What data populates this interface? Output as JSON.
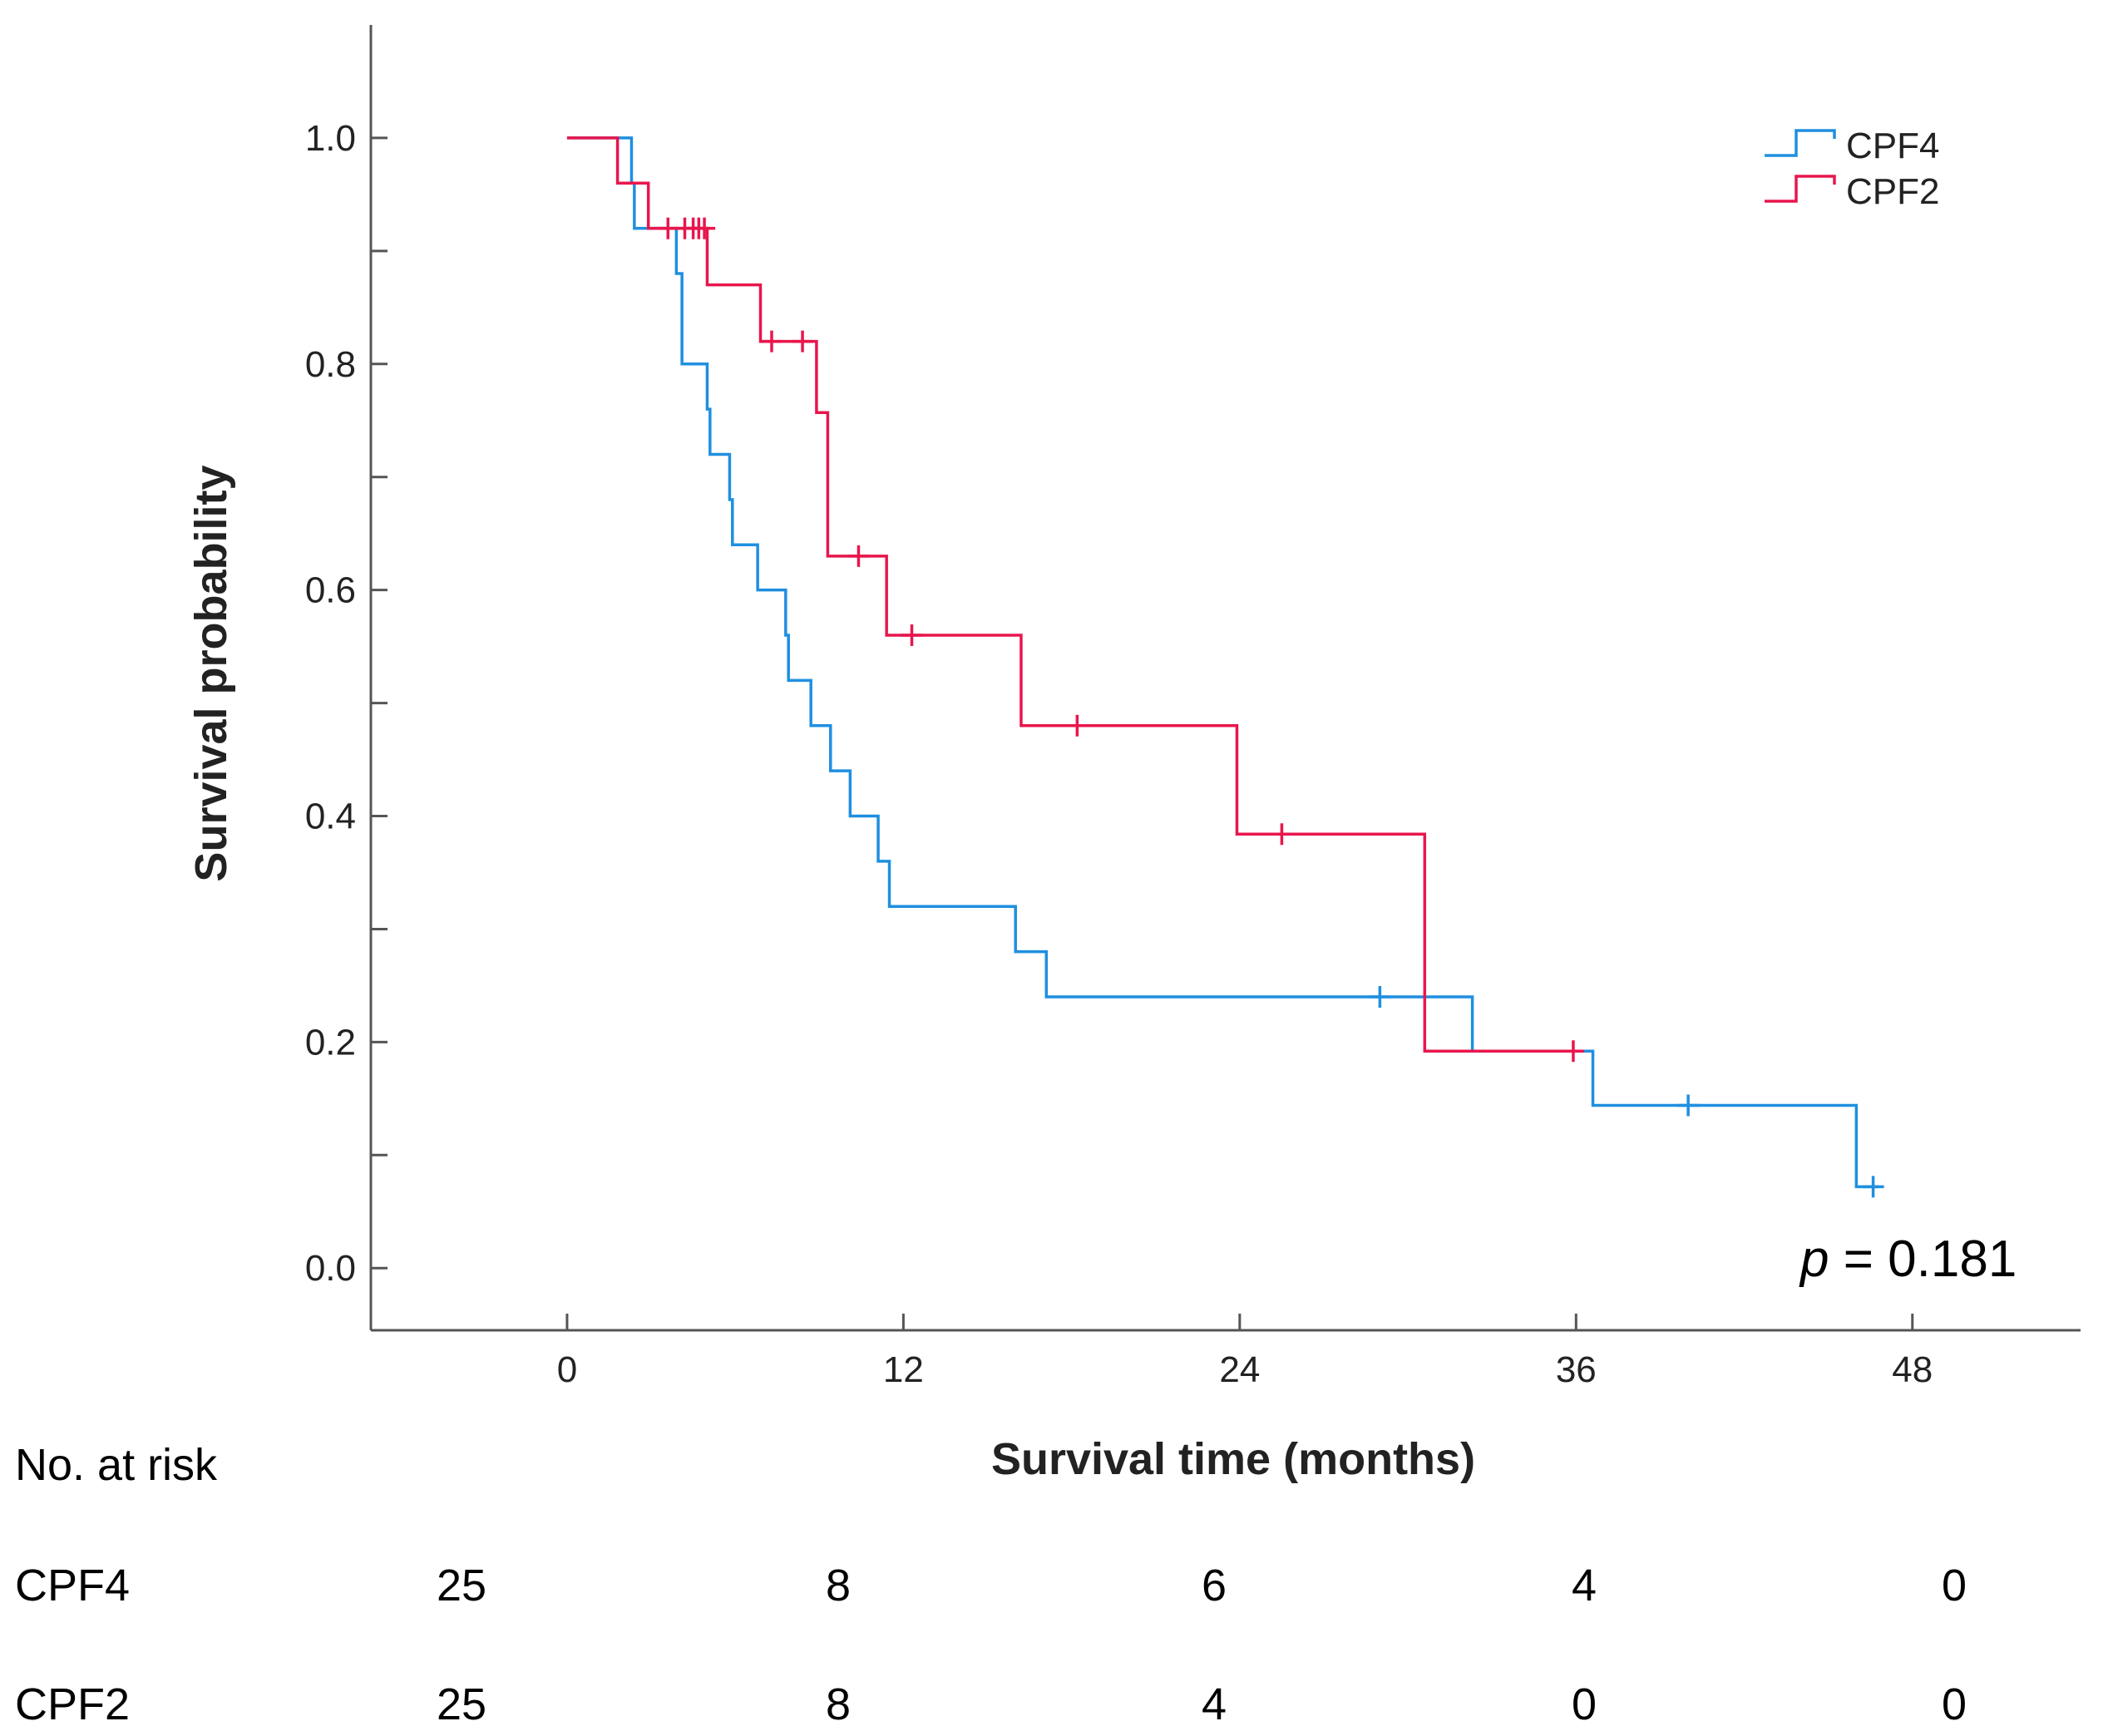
{
  "chart_data": {
    "type": "line",
    "subtype": "kaplan-meier",
    "title": "",
    "xlabel": "Survival time (months)",
    "ylabel": "Survival probability",
    "xlim": [
      -7,
      54
    ],
    "ylim": [
      -0.055,
      1.1
    ],
    "xticks": [
      0,
      12,
      24,
      36,
      48
    ],
    "xtick_labels": [
      "0",
      "12",
      "24",
      "36",
      "48"
    ],
    "yticks": [
      0.0,
      0.2,
      0.4,
      0.6,
      0.8,
      1.0
    ],
    "ytick_labels": [
      "0.0",
      "0.2",
      "0.4",
      "0.6",
      "0.8",
      "1.0"
    ],
    "yminor_ticks": [
      0.1,
      0.3,
      0.5,
      0.7,
      0.9
    ],
    "grid": false,
    "legend_position": "top-right",
    "series": [
      {
        "name": "CPF4",
        "color": "#1f8fe0",
        "steps": [
          [
            0,
            1.0
          ],
          [
            2.3,
            0.96
          ],
          [
            2.4,
            0.92
          ],
          [
            3.9,
            0.88
          ],
          [
            4.1,
            0.8
          ],
          [
            5.0,
            0.76
          ],
          [
            5.1,
            0.72
          ],
          [
            5.8,
            0.68
          ],
          [
            5.9,
            0.64
          ],
          [
            6.8,
            0.6
          ],
          [
            7.8,
            0.56
          ],
          [
            7.9,
            0.52
          ],
          [
            8.7,
            0.48
          ],
          [
            9.4,
            0.44
          ],
          [
            10.1,
            0.4
          ],
          [
            11.1,
            0.36
          ],
          [
            11.5,
            0.32
          ],
          [
            16.0,
            0.28
          ],
          [
            17.1,
            0.24
          ],
          [
            32.3,
            0.192
          ],
          [
            36.6,
            0.144
          ],
          [
            46.0,
            0.072
          ]
        ],
        "end_x": 46.8,
        "censored": [
          [
            29.0,
            0.24
          ],
          [
            40.0,
            0.144
          ],
          [
            46.6,
            0.072
          ]
        ]
      },
      {
        "name": "CPF2",
        "color": "#e8164d",
        "steps": [
          [
            0,
            1.0
          ],
          [
            1.8,
            0.96
          ],
          [
            2.9,
            0.92
          ],
          [
            5.0,
            0.87
          ],
          [
            6.9,
            0.82
          ],
          [
            8.9,
            0.757
          ],
          [
            9.3,
            0.63
          ],
          [
            11.4,
            0.56
          ],
          [
            16.2,
            0.48
          ],
          [
            23.9,
            0.384
          ],
          [
            30.6,
            0.192
          ]
        ],
        "end_x": 36.0,
        "censored": [
          [
            3.6,
            0.92
          ],
          [
            4.2,
            0.92
          ],
          [
            4.5,
            0.92
          ],
          [
            4.7,
            0.92
          ],
          [
            4.9,
            0.92
          ],
          [
            7.3,
            0.82
          ],
          [
            8.4,
            0.82
          ],
          [
            10.4,
            0.63
          ],
          [
            12.3,
            0.56
          ],
          [
            18.2,
            0.48
          ],
          [
            25.5,
            0.384
          ],
          [
            35.9,
            0.192
          ]
        ]
      }
    ],
    "annotation": {
      "italic": "p",
      "rest": " = 0.181"
    }
  },
  "risk_table": {
    "title": "No. at risk",
    "rows": [
      {
        "name": "CPF4",
        "values": [
          "25",
          "8",
          "6",
          "4",
          "0"
        ]
      },
      {
        "name": "CPF2",
        "values": [
          "25",
          "8",
          "4",
          "0",
          "0"
        ]
      }
    ]
  }
}
